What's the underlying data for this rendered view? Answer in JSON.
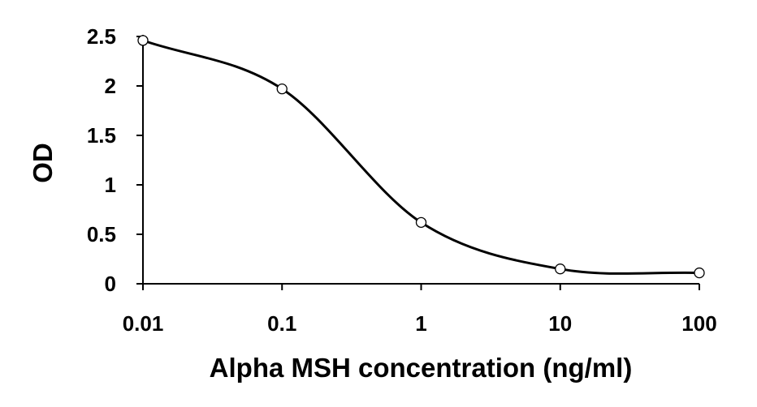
{
  "chart_data": {
    "type": "line",
    "title": "",
    "xlabel": "Alpha MSH concentration (ng/ml)",
    "ylabel": "OD",
    "x_scale": "log",
    "xlim": [
      0.01,
      100
    ],
    "ylim": [
      0,
      2.5
    ],
    "x_ticks": [
      0.01,
      0.1,
      1,
      10,
      100
    ],
    "x_tick_labels": [
      "0.01",
      "0.1",
      "1",
      "10",
      "100"
    ],
    "y_ticks": [
      0,
      0.5,
      1,
      1.5,
      2,
      2.5
    ],
    "y_tick_labels": [
      "0",
      "0.5",
      "1",
      "1.5",
      "2",
      "2.5"
    ],
    "grid": false,
    "legend": "none",
    "series": [
      {
        "x": [
          0.01,
          0.1,
          1,
          10,
          100
        ],
        "y": [
          2.46,
          1.97,
          0.62,
          0.15,
          0.11
        ],
        "marker": "open-circle",
        "curve": "smooth",
        "color": "#000000"
      }
    ]
  }
}
